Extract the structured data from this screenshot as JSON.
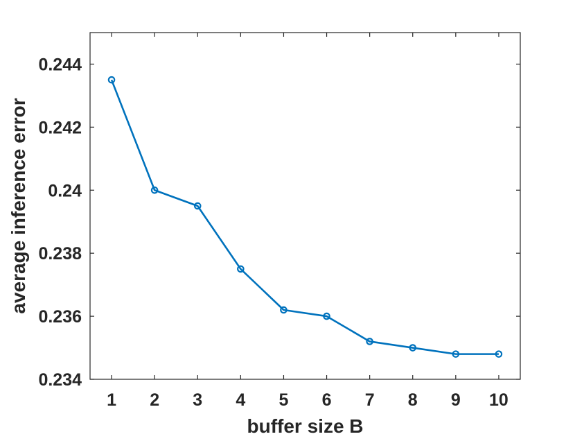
{
  "chart_data": {
    "type": "line",
    "title": "",
    "xlabel": "buffer size B",
    "ylabel": "average inference error",
    "x": [
      1,
      2,
      3,
      4,
      5,
      6,
      7,
      8,
      9,
      10
    ],
    "series": [
      {
        "values": [
          0.2435,
          0.24,
          0.2395,
          0.2375,
          0.2362,
          0.236,
          0.2352,
          0.235,
          0.2348,
          0.2348
        ],
        "color": "#0072BD",
        "marker": "circle"
      }
    ],
    "xlim": [
      0.5,
      10.5
    ],
    "ylim": [
      0.234,
      0.245
    ],
    "xticks": [
      1,
      2,
      3,
      4,
      5,
      6,
      7,
      8,
      9,
      10
    ],
    "xtick_labels": [
      "1",
      "2",
      "3",
      "4",
      "5",
      "6",
      "7",
      "8",
      "9",
      "10"
    ],
    "yticks": [
      0.234,
      0.236,
      0.238,
      0.24,
      0.242,
      0.244
    ],
    "ytick_labels": [
      "0.234",
      "0.236",
      "0.238",
      "0.24",
      "0.242",
      "0.244"
    ],
    "grid": false,
    "legend": "none"
  }
}
